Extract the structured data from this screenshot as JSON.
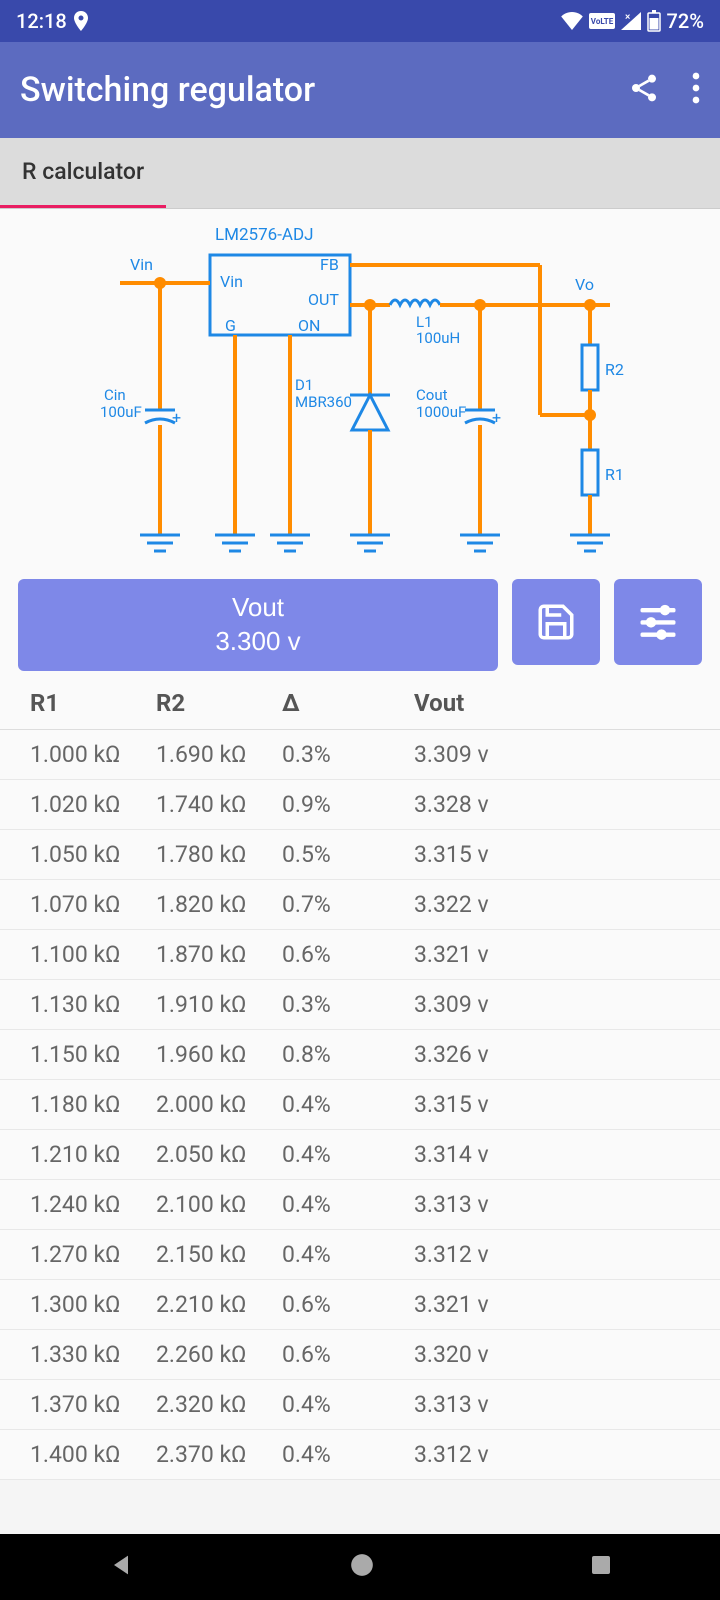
{
  "status": {
    "time": "12:18",
    "battery": "72%"
  },
  "appBar": {
    "title": "Switching regulator"
  },
  "tab": {
    "label": "R calculator"
  },
  "circuit": {
    "chip": "LM2576-ADJ",
    "vin": "Vin",
    "vo": "Vo",
    "fb": "FB",
    "out": "OUT",
    "g": "G",
    "on": "ON",
    "cin": "Cin",
    "cinVal": "100uF",
    "d1": "D1",
    "d1Val": "MBR360",
    "l1": "L1",
    "l1Val": "100uH",
    "cout": "Cout",
    "coutVal": "1000uF",
    "r1": "R1",
    "r2": "R2"
  },
  "vout": {
    "label": "Vout",
    "value": "3.300 v"
  },
  "columns": {
    "r1": "R1",
    "r2": "R2",
    "delta": "Δ",
    "vout": "Vout"
  },
  "rows": [
    {
      "r1": "1.000 kΩ",
      "r2": "1.690 kΩ",
      "delta": "0.3%",
      "vout": "3.309 v"
    },
    {
      "r1": "1.020 kΩ",
      "r2": "1.740 kΩ",
      "delta": "0.9%",
      "vout": "3.328 v"
    },
    {
      "r1": "1.050 kΩ",
      "r2": "1.780 kΩ",
      "delta": "0.5%",
      "vout": "3.315 v"
    },
    {
      "r1": "1.070 kΩ",
      "r2": "1.820 kΩ",
      "delta": "0.7%",
      "vout": "3.322 v"
    },
    {
      "r1": "1.100 kΩ",
      "r2": "1.870 kΩ",
      "delta": "0.6%",
      "vout": "3.321 v"
    },
    {
      "r1": "1.130 kΩ",
      "r2": "1.910 kΩ",
      "delta": "0.3%",
      "vout": "3.309 v"
    },
    {
      "r1": "1.150 kΩ",
      "r2": "1.960 kΩ",
      "delta": "0.8%",
      "vout": "3.326 v"
    },
    {
      "r1": "1.180 kΩ",
      "r2": "2.000 kΩ",
      "delta": "0.4%",
      "vout": "3.315 v"
    },
    {
      "r1": "1.210 kΩ",
      "r2": "2.050 kΩ",
      "delta": "0.4%",
      "vout": "3.314 v"
    },
    {
      "r1": "1.240 kΩ",
      "r2": "2.100 kΩ",
      "delta": "0.4%",
      "vout": "3.313 v"
    },
    {
      "r1": "1.270 kΩ",
      "r2": "2.150 kΩ",
      "delta": "0.4%",
      "vout": "3.312 v"
    },
    {
      "r1": "1.300 kΩ",
      "r2": "2.210 kΩ",
      "delta": "0.6%",
      "vout": "3.321 v"
    },
    {
      "r1": "1.330 kΩ",
      "r2": "2.260 kΩ",
      "delta": "0.6%",
      "vout": "3.320 v"
    },
    {
      "r1": "1.370 kΩ",
      "r2": "2.320 kΩ",
      "delta": "0.4%",
      "vout": "3.313 v"
    },
    {
      "r1": "1.400 kΩ",
      "r2": "2.370 kΩ",
      "delta": "0.4%",
      "vout": "3.312 v"
    }
  ],
  "colors": {
    "statusBar": "#3949ab",
    "appBar": "#5c6bc0",
    "accent": "#7e88e8",
    "tabIndicator": "#e91e63",
    "circuitBlue": "#1e88e5",
    "circuitOrange": "#ff8c00"
  }
}
